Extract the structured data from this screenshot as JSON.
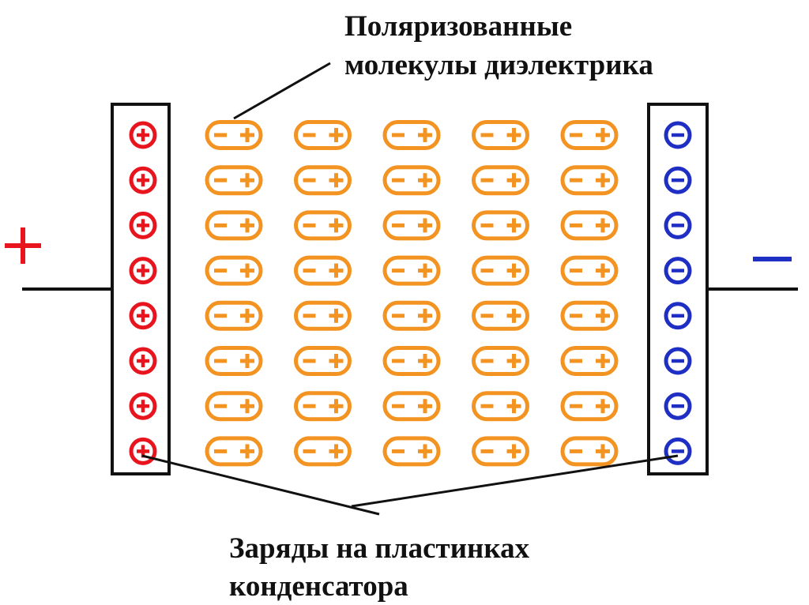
{
  "labels": {
    "dielectric_line1": "Поляризованные",
    "dielectric_line2": "молекулы диэлектрика",
    "charges_line1": "Заряды на пластинках",
    "charges_line2": "конденсатора"
  },
  "terminals": {
    "left_sign": "+",
    "right_sign": "−"
  },
  "plates": {
    "left": {
      "charge": "positive",
      "count": 8
    },
    "right": {
      "charge": "negative",
      "count": 8
    }
  },
  "dielectric": {
    "rows": 8,
    "columns": 5,
    "molecule_icon": "dipole-molecule-icon"
  },
  "colors": {
    "positive_charge": "#e8141e",
    "negative_charge": "#1f2fc4",
    "molecule": "#f39321",
    "lines": "#111111"
  }
}
